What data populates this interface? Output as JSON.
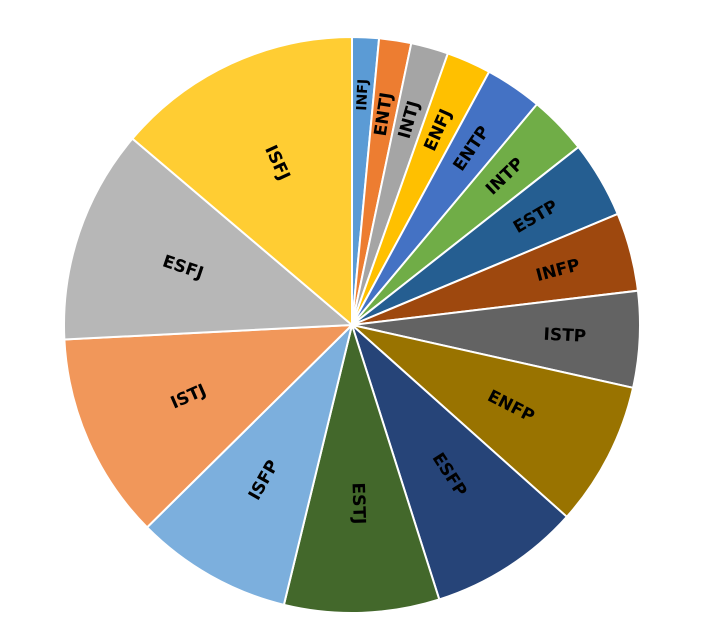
{
  "chart_data": {
    "type": "pie",
    "title": "",
    "start": "top",
    "direction": "clockwise",
    "slices": [
      {
        "label": "INFJ",
        "value": 1.5,
        "color": "#5B9BD5"
      },
      {
        "label": "ENTJ",
        "value": 1.8,
        "color": "#ED7D31"
      },
      {
        "label": "INTJ",
        "value": 2.1,
        "color": "#A5A5A5"
      },
      {
        "label": "ENFJ",
        "value": 2.5,
        "color": "#FFC000"
      },
      {
        "label": "ENTP",
        "value": 3.2,
        "color": "#4472C4"
      },
      {
        "label": "INTP",
        "value": 3.3,
        "color": "#70AD47"
      },
      {
        "label": "ESTP",
        "value": 4.3,
        "color": "#255E91"
      },
      {
        "label": "INFP",
        "value": 4.4,
        "color": "#9E480E"
      },
      {
        "label": "ISTP",
        "value": 5.4,
        "color": "#636363"
      },
      {
        "label": "ENFP",
        "value": 8.1,
        "color": "#997300"
      },
      {
        "label": "ESFP",
        "value": 8.5,
        "color": "#264478"
      },
      {
        "label": "ESTJ",
        "value": 8.7,
        "color": "#43682B"
      },
      {
        "label": "ISFP",
        "value": 8.8,
        "color": "#7CAFDD"
      },
      {
        "label": "ISTJ",
        "value": 11.6,
        "color": "#F1975A"
      },
      {
        "label": "ESFJ",
        "value": 12.0,
        "color": "#B7B7B7"
      },
      {
        "label": "ISFJ",
        "value": 13.8,
        "color": "#FFCD33"
      }
    ]
  }
}
